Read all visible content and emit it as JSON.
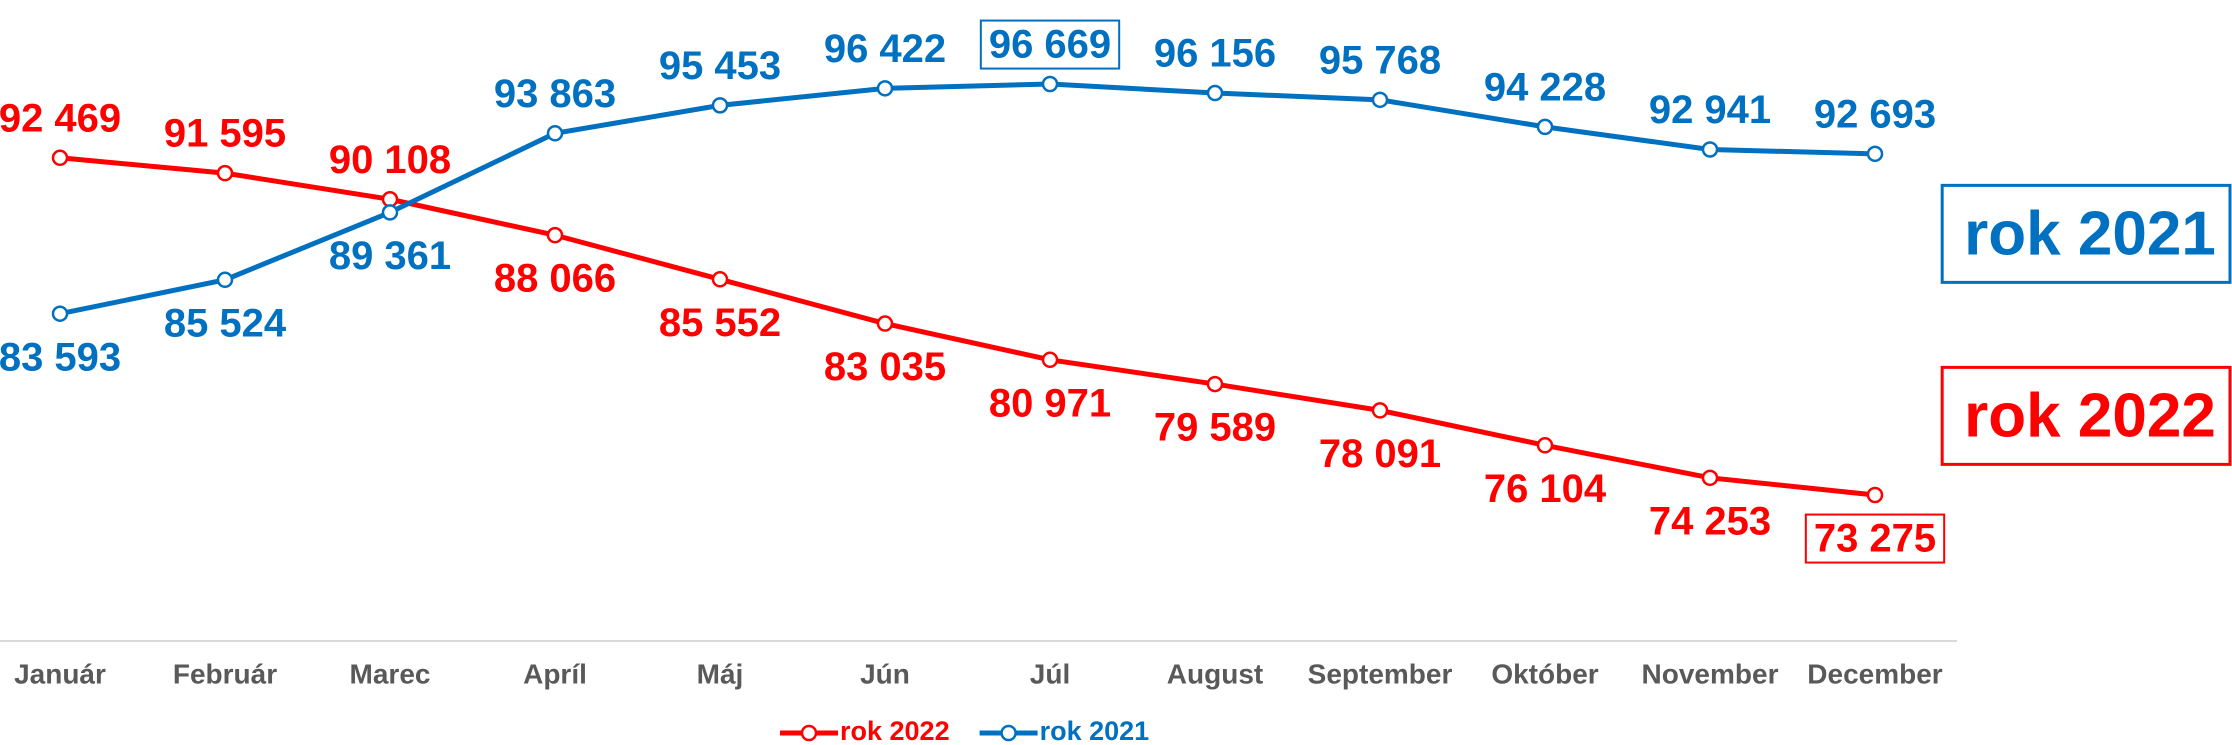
{
  "chart_data": {
    "type": "line",
    "categories": [
      "Január",
      "Február",
      "Marec",
      "Apríl",
      "Máj",
      "Jún",
      "Júl",
      "August",
      "September",
      "Október",
      "November",
      "December"
    ],
    "series": [
      {
        "name": "rok 2022",
        "color": "#ff0000",
        "values": [
          92469,
          91595,
          90108,
          88066,
          85552,
          83035,
          80971,
          79589,
          78091,
          76104,
          74253,
          73275
        ],
        "value_labels": [
          "92 469",
          "91 595",
          "90 108",
          "88 066",
          "85 552",
          "83 035",
          "80 971",
          "79 589",
          "78 091",
          "76 104",
          "74 253",
          "73 275"
        ],
        "highlight": 11
      },
      {
        "name": "rok 2021",
        "color": "#0070c0",
        "values": [
          83593,
          85524,
          89361,
          93863,
          95453,
          96422,
          96669,
          96156,
          95768,
          94228,
          92941,
          92693
        ],
        "value_labels": [
          "83 593",
          "85 524",
          "89 361",
          "93 863",
          "95 453",
          "96 422",
          "96 669",
          "96 156",
          "95 768",
          "94 228",
          "92 941",
          "92 693"
        ],
        "highlight": 6
      }
    ],
    "legend": "bottom"
  }
}
